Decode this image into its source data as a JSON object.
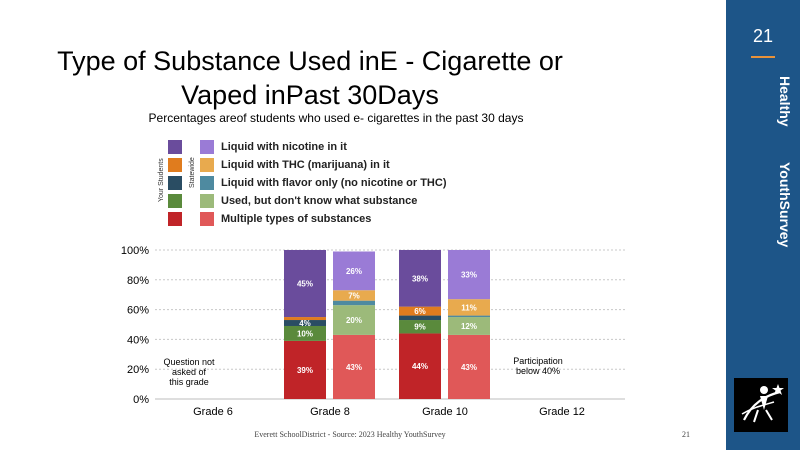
{
  "title_line1": "Type  of Substance  Used inE - Cigarette  or",
  "title_line2": "Vaped inPast  30Days",
  "subtitle": "Percentages areof students who used e- cigarettes in the past 30 days",
  "sidebar": {
    "page_number": "21",
    "title_a": "Healthy",
    "title_b": "YouthSurvey"
  },
  "legend": {
    "your_students": "Your Students",
    "statewide": "Statewide",
    "items": [
      {
        "label": "Liquid with nicotine in it",
        "you_color": "#6a4c9c",
        "state_color": "#9a7bd6"
      },
      {
        "label": "Liquid with THC (marijuana) in it",
        "you_color": "#e07c1e",
        "state_color": "#e8aa4e"
      },
      {
        "label": "Liquid with flavor only (no nicotine or THC)",
        "you_color": "#2a4d63",
        "state_color": "#4e8aa0"
      },
      {
        "label": "Used, but don't know what substance",
        "you_color": "#5a8a3c",
        "state_color": "#9cba7a"
      },
      {
        "label": "Multiple types of substances",
        "you_color": "#c02428",
        "state_color": "#e05858"
      }
    ]
  },
  "chart_data": {
    "type": "bar",
    "stacked": true,
    "categories": [
      "Grade 6",
      "Grade 8",
      "Grade 10",
      "Grade 12"
    ],
    "ylim": [
      0,
      100
    ],
    "yticks": [
      "0%",
      "20%",
      "40%",
      "60%",
      "80%",
      "100%"
    ],
    "bars": [
      {
        "category": "Grade 8",
        "group": "Your Students",
        "segments": [
          {
            "series": "Multiple types of substances",
            "value": 39,
            "label": "39%",
            "color": "#c02428"
          },
          {
            "series": "Used, but don't know what substance",
            "value": 10,
            "label": "10%",
            "color": "#5a8a3c"
          },
          {
            "series": "Liquid with flavor only (no nicotine or THC)",
            "value": 4,
            "label": "4%",
            "color": "#2a4d63"
          },
          {
            "series": "Liquid with THC (marijuana) in it",
            "value": 2,
            "label": "",
            "color": "#e07c1e"
          },
          {
            "series": "Liquid with nicotine in it",
            "value": 45,
            "label": "45%",
            "color": "#6a4c9c"
          }
        ]
      },
      {
        "category": "Grade 8",
        "group": "Statewide",
        "segments": [
          {
            "series": "Multiple types of substances",
            "value": 43,
            "label": "43%",
            "color": "#e05858"
          },
          {
            "series": "Used, but don't know what substance",
            "value": 20,
            "label": "20%",
            "color": "#9cba7a"
          },
          {
            "series": "Liquid with flavor only (no nicotine or THC)",
            "value": 3,
            "label": "",
            "color": "#4e8aa0"
          },
          {
            "series": "Liquid with THC (marijuana) in it",
            "value": 7,
            "label": "7%",
            "color": "#e8aa4e"
          },
          {
            "series": "Liquid with nicotine in it",
            "value": 26,
            "label": "26%",
            "color": "#9a7bd6"
          }
        ]
      },
      {
        "category": "Grade 10",
        "group": "Your Students",
        "segments": [
          {
            "series": "Multiple types of substances",
            "value": 44,
            "label": "44%",
            "color": "#c02428"
          },
          {
            "series": "Used, but don't know what substance",
            "value": 9,
            "label": "9%",
            "color": "#5a8a3c"
          },
          {
            "series": "Liquid with flavor only (no nicotine or THC)",
            "value": 3,
            "label": "",
            "color": "#2a4d63"
          },
          {
            "series": "Liquid with THC (marijuana) in it",
            "value": 6,
            "label": "6%",
            "color": "#e07c1e"
          },
          {
            "series": "Liquid with nicotine in it",
            "value": 38,
            "label": "38%",
            "color": "#6a4c9c"
          }
        ]
      },
      {
        "category": "Grade 10",
        "group": "Statewide",
        "segments": [
          {
            "series": "Multiple types of substances",
            "value": 43,
            "label": "43%",
            "color": "#e05858"
          },
          {
            "series": "Used, but don't know what substance",
            "value": 12,
            "label": "12%",
            "color": "#9cba7a"
          },
          {
            "series": "Liquid with flavor only (no nicotine or THC)",
            "value": 1,
            "label": "",
            "color": "#4e8aa0"
          },
          {
            "series": "Liquid with THC (marijuana) in it",
            "value": 11,
            "label": "11%",
            "color": "#e8aa4e"
          },
          {
            "series": "Liquid with nicotine in it",
            "value": 33,
            "label": "33%",
            "color": "#9a7bd6"
          }
        ]
      }
    ],
    "annotations": [
      {
        "category": "Grade 6",
        "lines": [
          "Question not",
          "asked of",
          "this grade"
        ]
      },
      {
        "category": "Grade 12",
        "lines": [
          "Participation",
          "below 40%"
        ]
      }
    ]
  },
  "footer": "Everett  SchoolDistrict  -  Source:  2023 Healthy  YouthSurvey",
  "footer_page": "21"
}
